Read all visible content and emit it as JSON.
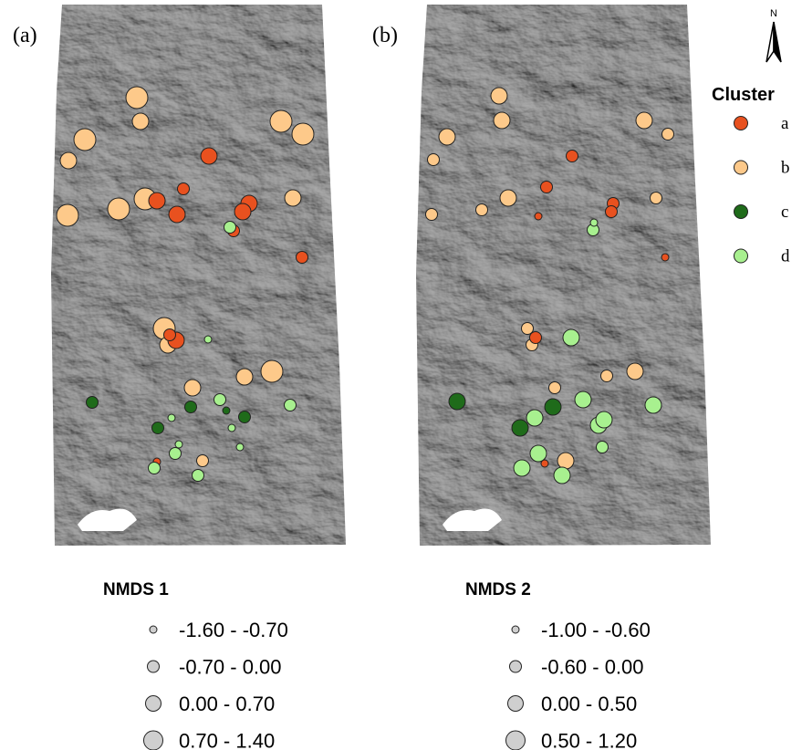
{
  "panels": [
    {
      "label": "(a)"
    },
    {
      "label": "(b)"
    }
  ],
  "north_arrow": "N",
  "cluster_legend": {
    "title": "Cluster",
    "items": [
      {
        "label": "a",
        "color": "#e8511f"
      },
      {
        "label": "b",
        "color": "#fdc98a"
      },
      {
        "label": "c",
        "color": "#1f6b1a"
      },
      {
        "label": "d",
        "color": "#a8f08f"
      }
    ]
  },
  "size_legends": [
    {
      "title": "NMDS 1",
      "classes": [
        "-1.60 - -0.70",
        "-0.70 - 0.00",
        "0.00 - 0.70",
        "0.70 - 1.40"
      ]
    },
    {
      "title": "NMDS 2",
      "classes": [
        "-1.00 - -0.60",
        "-0.60 - 0.00",
        "0.00 - 0.50",
        "0.50 - 1.20"
      ]
    }
  ]
}
